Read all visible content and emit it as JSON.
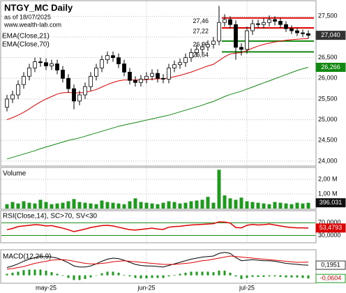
{
  "chart_data": [
    {
      "type": "candlestick",
      "title": "NTGY_MC Daily",
      "subtitle": "as of 18/07/2025",
      "source": "www.wealth-lab.com",
      "up_color": "#ffffff",
      "down_color": "#000000",
      "open": [
        25300,
        25500,
        25600,
        25850,
        26050,
        26250,
        26400,
        26380,
        26300,
        26350,
        26200,
        26000,
        25750,
        25450,
        25600,
        25800,
        26050,
        26250,
        26450,
        26550,
        26500,
        26350,
        26150,
        25950,
        25900,
        25980,
        26050,
        26120,
        26000,
        25980,
        26250,
        26330,
        26380,
        26500,
        26620,
        26700,
        26760,
        26820,
        26900,
        27350,
        27420,
        27300,
        26750,
        26700,
        27150,
        27320,
        27300,
        27350,
        27420,
        27380,
        27300,
        27200,
        27150,
        27100,
        27080
      ],
      "high": [
        25600,
        25700,
        25950,
        26150,
        26350,
        26500,
        26500,
        26480,
        26450,
        26450,
        26300,
        26100,
        25850,
        25700,
        25900,
        26150,
        26350,
        26550,
        26650,
        26650,
        26600,
        26450,
        26250,
        26050,
        26080,
        26150,
        26220,
        26220,
        26100,
        26350,
        26430,
        26480,
        26600,
        26720,
        26800,
        26860,
        26920,
        27000,
        27750,
        27550,
        27500,
        27400,
        26850,
        27250,
        27420,
        27420,
        27450,
        27520,
        27500,
        27460,
        27380,
        27280,
        27230,
        27180,
        27160
      ],
      "low": [
        25200,
        25400,
        25500,
        25750,
        25950,
        26150,
        26280,
        26200,
        26200,
        26100,
        25900,
        25650,
        25250,
        25350,
        25500,
        25700,
        25950,
        26150,
        26350,
        26400,
        26250,
        26050,
        25850,
        25800,
        25800,
        25880,
        25950,
        25900,
        25880,
        25880,
        26150,
        26230,
        26280,
        26400,
        26520,
        26600,
        26660,
        26720,
        26800,
        27250,
        27200,
        26450,
        26550,
        26600,
        27050,
        27200,
        27200,
        27250,
        27280,
        27220,
        27120,
        27070,
        27020,
        27000,
        26960
      ],
      "close": [
        25500,
        25600,
        25850,
        26050,
        26250,
        26400,
        26380,
        26300,
        26350,
        26200,
        26000,
        25750,
        25450,
        25600,
        25800,
        26050,
        26250,
        26450,
        26550,
        26500,
        26350,
        26150,
        25950,
        25900,
        25980,
        26050,
        26120,
        26000,
        25980,
        26250,
        26330,
        26380,
        26500,
        26620,
        26700,
        26760,
        26820,
        26900,
        27350,
        27420,
        27300,
        26750,
        26700,
        27150,
        27320,
        27300,
        27350,
        27420,
        27380,
        27300,
        27200,
        27150,
        27100,
        27080,
        27040
      ],
      "close_labels": [
        null,
        null,
        null,
        null,
        null,
        null,
        null,
        null,
        null,
        null,
        null,
        null,
        null,
        null,
        null,
        null,
        null,
        null,
        null,
        null,
        null,
        null,
        null,
        null,
        null,
        null,
        null,
        null,
        null,
        null,
        null,
        null,
        null,
        null,
        null,
        null,
        null,
        null,
        null,
        null,
        null,
        null,
        null,
        null,
        null,
        null,
        null,
        null,
        null,
        null,
        null,
        null,
        null,
        null,
        "27,040"
      ],
      "series": [
        {
          "name": "EMA(Close,21)",
          "color": "#dd0000",
          "values": [
            25000,
            25050,
            25110,
            25180,
            25260,
            25350,
            25430,
            25500,
            25560,
            25620,
            25650,
            25660,
            25650,
            25650,
            25660,
            25690,
            25730,
            25790,
            25850,
            25900,
            25940,
            25960,
            25960,
            25960,
            25960,
            25970,
            25980,
            25990,
            25990,
            26010,
            26040,
            26070,
            26110,
            26150,
            26200,
            26250,
            26300,
            26340,
            26430,
            26520,
            26590,
            26610,
            26620,
            26670,
            26730,
            26780,
            26820,
            26850,
            26880,
            26900,
            26920,
            26935,
            26945,
            26955,
            26960
          ]
        },
        {
          "name": "EMA(Close,70)",
          "color": "#118811",
          "values": [
            24050,
            24090,
            24130,
            24170,
            24210,
            24250,
            24300,
            24340,
            24380,
            24420,
            24460,
            24500,
            24530,
            24560,
            24600,
            24640,
            24680,
            24720,
            24760,
            24800,
            24840,
            24870,
            24900,
            24930,
            24960,
            24990,
            25020,
            25050,
            25080,
            25110,
            25150,
            25190,
            25230,
            25270,
            25310,
            25350,
            25400,
            25440,
            25500,
            25560,
            25610,
            25650,
            25690,
            25740,
            25790,
            25840,
            25890,
            25940,
            25990,
            26040,
            26090,
            26140,
            26190,
            26230,
            26266
          ],
          "value_labels": [
            null,
            null,
            null,
            null,
            null,
            null,
            null,
            null,
            null,
            null,
            null,
            null,
            null,
            null,
            null,
            null,
            null,
            null,
            null,
            null,
            null,
            null,
            null,
            null,
            null,
            null,
            null,
            null,
            null,
            null,
            null,
            null,
            null,
            null,
            null,
            null,
            null,
            null,
            null,
            null,
            null,
            null,
            null,
            null,
            null,
            null,
            null,
            null,
            null,
            null,
            null,
            null,
            null,
            null,
            "26,266"
          ]
        }
      ],
      "levels": [
        {
          "value": 27460,
          "label": "27,46",
          "color": "#dd0000"
        },
        {
          "value": 27220,
          "label": "27,22",
          "color": "#dd0000"
        },
        {
          "value": 26900,
          "label": "26,90",
          "color": "#118811"
        },
        {
          "value": 26640,
          "label": "26,64",
          "color": "#118811"
        }
      ],
      "ylim": [
        23880,
        27860
      ],
      "yticks": [
        {
          "value": 24000,
          "label": "24,000"
        },
        {
          "value": 24500,
          "label": "24,500"
        },
        {
          "value": 25000,
          "label": "25,000"
        },
        {
          "value": 25500,
          "label": "25,500"
        },
        {
          "value": 26000,
          "label": "26,000"
        },
        {
          "value": 26500,
          "label": "26,500"
        },
        {
          "value": 27000,
          "label": "27,000"
        },
        {
          "value": 27500,
          "label": "27,500"
        }
      ],
      "grid": true
    },
    {
      "type": "bar",
      "title": "Volume",
      "color": "#1f9a1f",
      "values": [
        300000,
        450000,
        350000,
        500000,
        400000,
        350000,
        600000,
        450000,
        300000,
        350000,
        400000,
        500000,
        650000,
        450000,
        400000,
        350000,
        300000,
        550000,
        450000,
        400000,
        350000,
        300000,
        500000,
        700000,
        450000,
        400000,
        350000,
        300000,
        400000,
        500000,
        450000,
        350000,
        400000,
        500000,
        550000,
        600000,
        800000,
        400000,
        2650000,
        900000,
        700000,
        600000,
        750000,
        500000,
        450000,
        400000,
        350000,
        300000,
        450000,
        400000,
        350000,
        300000,
        400000,
        350000,
        396031
      ],
      "value_labels": [
        null,
        null,
        null,
        null,
        null,
        null,
        null,
        null,
        null,
        null,
        null,
        null,
        null,
        null,
        null,
        null,
        null,
        null,
        null,
        null,
        null,
        null,
        null,
        null,
        null,
        null,
        null,
        null,
        null,
        null,
        null,
        null,
        null,
        null,
        null,
        null,
        null,
        null,
        null,
        null,
        null,
        null,
        null,
        null,
        null,
        null,
        null,
        null,
        null,
        null,
        null,
        null,
        null,
        null,
        "396.031"
      ],
      "ylim": [
        0,
        2760000
      ],
      "yticks": [
        {
          "value": 1000000,
          "label": "1,00 M"
        },
        {
          "value": 2000000,
          "label": "2,00 M"
        }
      ]
    },
    {
      "type": "line",
      "title": "RSI(Close,14), SC>70, SV<30",
      "color": "#dd0000",
      "grid_color": "#118811",
      "values": [
        48,
        52,
        58,
        60,
        62,
        64,
        63,
        60,
        61,
        57,
        53,
        48,
        42,
        46,
        50,
        55,
        58,
        61,
        62,
        60,
        56,
        52,
        48,
        47,
        49,
        51,
        53,
        50,
        49,
        56,
        58,
        59,
        61,
        63,
        64,
        65,
        66,
        67,
        73,
        72,
        69,
        55,
        54,
        62,
        65,
        63,
        64,
        66,
        63,
        60,
        57,
        55,
        54,
        53.8,
        53.4793
      ],
      "value_labels": [
        null,
        null,
        null,
        null,
        null,
        null,
        null,
        null,
        null,
        null,
        null,
        null,
        null,
        null,
        null,
        null,
        null,
        null,
        null,
        null,
        null,
        null,
        null,
        null,
        null,
        null,
        null,
        null,
        null,
        null,
        null,
        null,
        null,
        null,
        null,
        null,
        null,
        null,
        null,
        null,
        null,
        null,
        null,
        null,
        null,
        null,
        null,
        null,
        null,
        null,
        null,
        null,
        null,
        null,
        "53,4793"
      ],
      "ylim": [
        9,
        106
      ],
      "yticks": [
        {
          "value": 30,
          "label": "30,0000"
        },
        {
          "value": 70,
          "label": "70,0000"
        }
      ]
    },
    {
      "type": "macd",
      "title": "MACD(12,26,9)",
      "categories": [
        null,
        null,
        null,
        null,
        null,
        null,
        null,
        "may-25",
        null,
        null,
        null,
        null,
        null,
        null,
        null,
        null,
        null,
        null,
        null,
        null,
        null,
        null,
        null,
        null,
        null,
        "jun-25",
        null,
        null,
        null,
        null,
        null,
        null,
        null,
        null,
        null,
        null,
        null,
        null,
        null,
        null,
        null,
        null,
        null,
        "jul-25",
        null,
        null,
        null,
        null,
        null,
        null,
        null,
        null,
        null,
        null,
        null
      ],
      "series": [
        {
          "color": "#000000",
          "values": [
            0.15,
            0.18,
            0.22,
            0.27,
            0.31,
            0.34,
            0.36,
            0.36,
            0.35,
            0.33,
            0.29,
            0.24,
            0.18,
            0.16,
            0.16,
            0.18,
            0.22,
            0.27,
            0.31,
            0.33,
            0.32,
            0.29,
            0.25,
            0.21,
            0.19,
            0.18,
            0.18,
            0.17,
            0.16,
            0.19,
            0.22,
            0.25,
            0.28,
            0.31,
            0.33,
            0.35,
            0.36,
            0.37,
            0.42,
            0.44,
            0.42,
            0.34,
            0.28,
            0.29,
            0.3,
            0.29,
            0.28,
            0.28,
            0.27,
            0.25,
            0.23,
            0.22,
            0.21,
            0.2,
            0.1951
          ],
          "value_labels": [
            null,
            null,
            null,
            null,
            null,
            null,
            null,
            null,
            null,
            null,
            null,
            null,
            null,
            null,
            null,
            null,
            null,
            null,
            null,
            null,
            null,
            null,
            null,
            null,
            null,
            null,
            null,
            null,
            null,
            null,
            null,
            null,
            null,
            null,
            null,
            null,
            null,
            null,
            null,
            null,
            null,
            null,
            null,
            null,
            null,
            null,
            null,
            null,
            null,
            null,
            null,
            null,
            null,
            null,
            "0,1951"
          ]
        },
        {
          "color": "#dd0000",
          "values": [
            0.12,
            0.13,
            0.15,
            0.17,
            0.2,
            0.23,
            0.25,
            0.27,
            0.29,
            0.3,
            0.3,
            0.29,
            0.27,
            0.25,
            0.23,
            0.22,
            0.22,
            0.23,
            0.24,
            0.26,
            0.27,
            0.28,
            0.27,
            0.26,
            0.25,
            0.24,
            0.23,
            0.22,
            0.21,
            0.21,
            0.21,
            0.22,
            0.23,
            0.24,
            0.26,
            0.28,
            0.29,
            0.31,
            0.33,
            0.35,
            0.37,
            0.36,
            0.35,
            0.34,
            0.33,
            0.32,
            0.31,
            0.3,
            0.29,
            0.28,
            0.27,
            0.26,
            0.25,
            0.25,
            0.2555
          ]
        }
      ],
      "histogram": {
        "color": "#1f9a1f",
        "values": [
          0.03,
          0.05,
          0.07,
          0.1,
          0.11,
          0.11,
          0.11,
          0.09,
          0.06,
          0.03,
          -0.01,
          -0.05,
          -0.09,
          -0.09,
          -0.07,
          -0.04,
          0,
          0.04,
          0.07,
          0.07,
          0.05,
          0.01,
          -0.02,
          -0.05,
          -0.06,
          -0.06,
          -0.05,
          -0.05,
          -0.05,
          -0.02,
          0.01,
          0.03,
          0.05,
          0.07,
          0.07,
          0.07,
          0.07,
          0.06,
          0.09,
          0.09,
          0.05,
          -0.02,
          -0.07,
          -0.05,
          -0.03,
          -0.03,
          -0.03,
          -0.02,
          -0.02,
          -0.03,
          -0.04,
          -0.04,
          -0.04,
          -0.05,
          -0.0604
        ],
        "value_labels": [
          null,
          null,
          null,
          null,
          null,
          null,
          null,
          null,
          null,
          null,
          null,
          null,
          null,
          null,
          null,
          null,
          null,
          null,
          null,
          null,
          null,
          null,
          null,
          null,
          null,
          null,
          null,
          null,
          null,
          null,
          null,
          null,
          null,
          null,
          null,
          null,
          null,
          null,
          null,
          null,
          null,
          null,
          null,
          null,
          null,
          null,
          null,
          null,
          null,
          null,
          null,
          null,
          null,
          null,
          "-0,0604"
        ]
      },
      "ylim": [
        -0.138,
        0.477
      ]
    }
  ]
}
